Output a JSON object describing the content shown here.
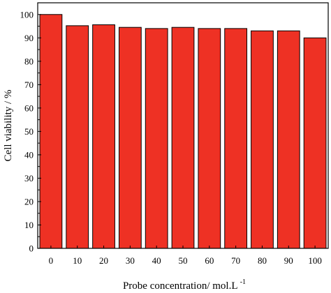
{
  "chart_data": {
    "type": "bar",
    "title": "",
    "xlabel": "Probe concentration/ mol.L",
    "xlabel_superscript": "-1",
    "ylabel": "Cell viability / %",
    "categories": [
      "0",
      "10",
      "20",
      "30",
      "40",
      "50",
      "60",
      "70",
      "80",
      "90",
      "100"
    ],
    "values": [
      100,
      95.2,
      95.6,
      94.5,
      94.0,
      94.5,
      94.0,
      94.0,
      93.0,
      93.0,
      90.0
    ],
    "ylim": [
      0,
      105
    ],
    "yticks": [
      0,
      10,
      20,
      30,
      40,
      50,
      60,
      70,
      80,
      90,
      100
    ],
    "ytick_labels": [
      "0",
      "10",
      "20",
      "30",
      "40",
      "50",
      "60",
      "70",
      "80",
      "90",
      "100"
    ],
    "grid": false,
    "legend": "none",
    "bar_color": "#ee3124",
    "bar_edge_color": "#000000"
  }
}
